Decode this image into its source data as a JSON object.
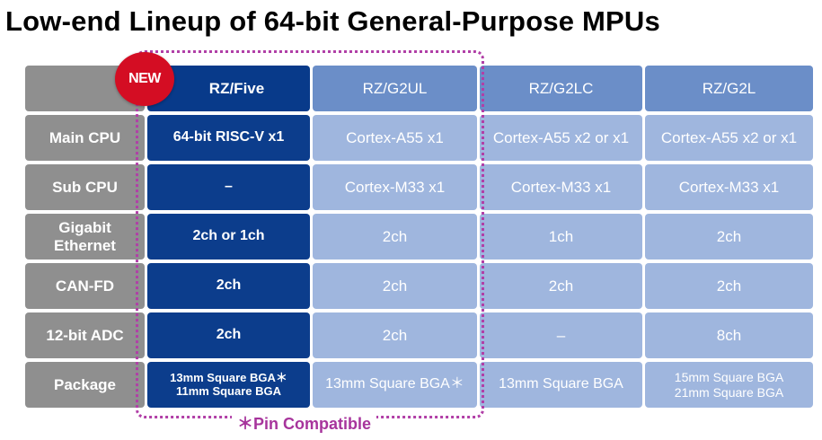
{
  "title": "Low-end Lineup of 64-bit General-Purpose MPUs",
  "badge": "NEW",
  "pin_note": "＊Pin Compatible",
  "columns": [
    "RZ/Five",
    "RZ/G2UL",
    "RZ/G2LC",
    "RZ/G2L"
  ],
  "rows": [
    {
      "label": "Main CPU",
      "values": [
        "64-bit RISC-V x1",
        "Cortex-A55 x1",
        "Cortex-A55 x2 or x1",
        "Cortex-A55 x2 or x1"
      ]
    },
    {
      "label": "Sub CPU",
      "values": [
        "–",
        "Cortex-M33 x1",
        "Cortex-M33 x1",
        "Cortex-M33 x1"
      ]
    },
    {
      "label_lines": [
        "Gigabit",
        "Ethernet"
      ],
      "values": [
        "2ch or 1ch",
        "2ch",
        "1ch",
        "2ch"
      ]
    },
    {
      "label": "CAN-FD",
      "values": [
        "2ch",
        "2ch",
        "2ch",
        "2ch"
      ]
    },
    {
      "label": "12-bit ADC",
      "values": [
        "2ch",
        "2ch",
        "–",
        "8ch"
      ]
    },
    {
      "label": "Package",
      "values": [
        [
          "13mm Square BGA＊",
          "11mm Square BGA"
        ],
        [
          "13mm Square BGA＊"
        ],
        [
          "13mm Square BGA"
        ],
        [
          "15mm Square BGA",
          "21mm Square BGA"
        ]
      ]
    }
  ],
  "colors": {
    "row_header": "#8f8f8f",
    "rzfive": "#0c3d8c",
    "column_header": "#6b8ec8",
    "data_cell": "#9fb6de",
    "badge": "#d40d23",
    "pin_compatible": "#a7349c"
  }
}
